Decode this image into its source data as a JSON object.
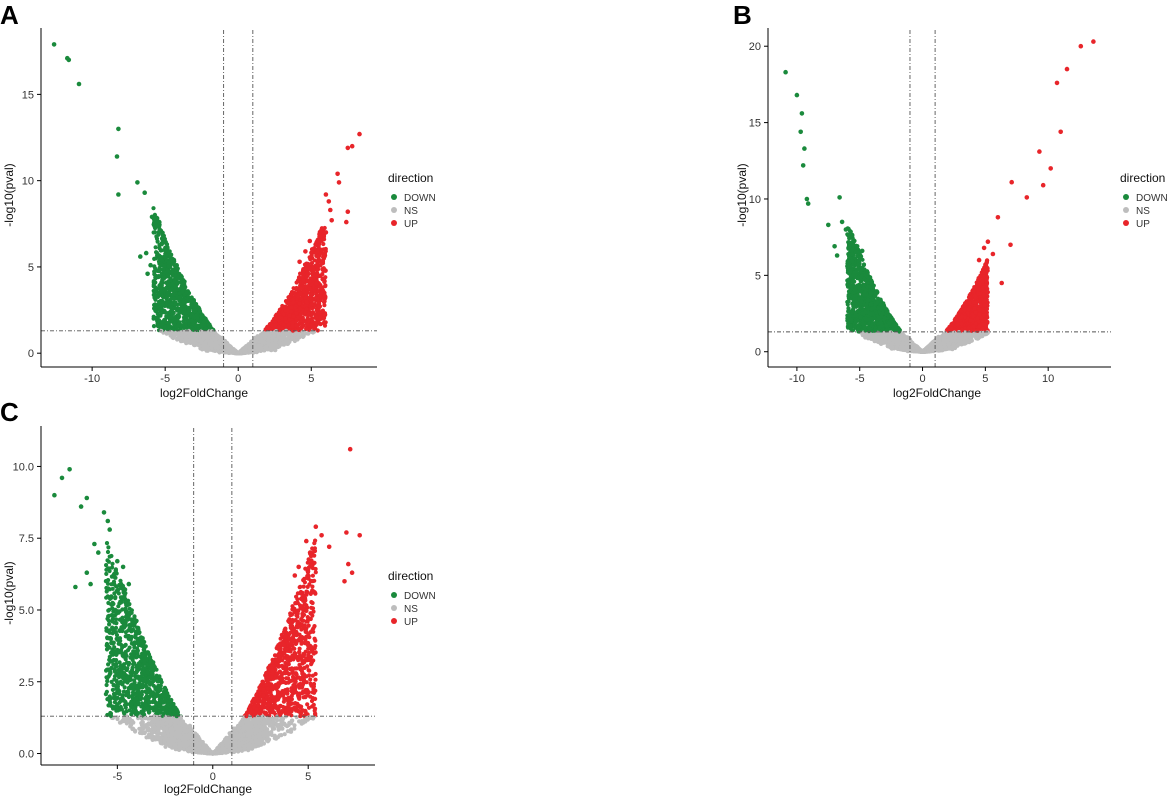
{
  "figure": {
    "legend_title": "direction",
    "legend_entries": [
      "DOWN",
      "NS",
      "UP"
    ],
    "colors": {
      "DOWN": "#1a8a3c",
      "NS": "#bdbdbd",
      "UP": "#e8252a"
    }
  },
  "chart_data": [
    {
      "panel": "A",
      "type": "scatter",
      "xlabel": "log2FoldChange",
      "ylabel": "-log10(pval)",
      "xlim": [
        -13.5,
        9.5
      ],
      "ylim": [
        -0.8,
        18.5
      ],
      "xticks": [
        -10,
        -5,
        0,
        5
      ],
      "xtick_labels": [
        "-10",
        "-5",
        "0",
        "5"
      ],
      "yticks": [
        0,
        5,
        10,
        15
      ],
      "ytick_labels": [
        "0",
        "5",
        "10",
        "15"
      ],
      "vlines": [
        -1,
        1
      ],
      "hline": 1.3,
      "cloud": {
        "left_extent": 5.8,
        "right_extent": 6.0,
        "down_max": 5.5,
        "up_max": 4.8,
        "density": 0.9
      },
      "down_points": [
        [
          -12.6,
          17.9
        ],
        [
          -11.7,
          17.1
        ],
        [
          -11.6,
          17.0
        ],
        [
          -10.9,
          15.6
        ],
        [
          -8.2,
          13.0
        ],
        [
          -8.3,
          11.4
        ],
        [
          -8.2,
          9.2
        ],
        [
          -6.9,
          9.9
        ],
        [
          -6.4,
          9.3
        ],
        [
          -5.9,
          7.9
        ],
        [
          -5.7,
          7.8
        ],
        [
          -5.4,
          7.6
        ],
        [
          -5.3,
          7.1
        ],
        [
          -5.1,
          6.8
        ],
        [
          -6.3,
          5.8
        ],
        [
          -6.0,
          5.1
        ],
        [
          -4.9,
          6.0
        ],
        [
          -4.6,
          5.7
        ],
        [
          -4.4,
          5.4
        ],
        [
          -6.7,
          5.6
        ],
        [
          -6.2,
          4.6
        ]
      ],
      "up_points": [
        [
          8.3,
          12.7
        ],
        [
          7.8,
          12.0
        ],
        [
          7.5,
          11.9
        ],
        [
          6.8,
          10.4
        ],
        [
          6.9,
          9.9
        ],
        [
          6.2,
          8.8
        ],
        [
          6.0,
          9.2
        ],
        [
          6.3,
          8.3
        ],
        [
          7.5,
          8.2
        ],
        [
          7.4,
          7.6
        ],
        [
          6.4,
          7.7
        ],
        [
          6.0,
          7.0
        ],
        [
          5.6,
          6.8
        ],
        [
          4.9,
          6.5
        ],
        [
          5.3,
          6.3
        ],
        [
          4.6,
          5.9
        ],
        [
          4.2,
          5.3
        ],
        [
          5.9,
          5.6
        ]
      ]
    },
    {
      "panel": "B",
      "type": "scatter",
      "xlabel": "log2FoldChange",
      "ylabel": "-log10(pval)",
      "xlim": [
        -12.3,
        15.0
      ],
      "ylim": [
        -1.0,
        20.8
      ],
      "xticks": [
        -10,
        -5,
        0,
        5,
        10
      ],
      "xtick_labels": [
        "-10",
        "-5",
        "0",
        "5",
        "10"
      ],
      "yticks": [
        0,
        5,
        10,
        15,
        20
      ],
      "ytick_labels": [
        "0",
        "5",
        "10",
        "15",
        "20"
      ],
      "vlines": [
        -1,
        1
      ],
      "hline": 1.3,
      "cloud": {
        "left_extent": 6.0,
        "right_extent": 5.2,
        "down_max": 5.5,
        "up_max": 3.6,
        "density": 1.0
      },
      "down_points": [
        [
          -10.9,
          18.3
        ],
        [
          -10.0,
          16.8
        ],
        [
          -9.6,
          15.6
        ],
        [
          -9.7,
          14.4
        ],
        [
          -9.4,
          13.3
        ],
        [
          -9.5,
          12.2
        ],
        [
          -9.2,
          10.0
        ],
        [
          -9.1,
          9.7
        ],
        [
          -6.6,
          10.1
        ],
        [
          -7.5,
          8.3
        ],
        [
          -6.4,
          8.5
        ],
        [
          -6.1,
          8.0
        ],
        [
          -5.7,
          7.6
        ],
        [
          -5.5,
          7.3
        ],
        [
          -7.0,
          6.9
        ],
        [
          -6.8,
          6.3
        ],
        [
          -5.2,
          6.9
        ],
        [
          -4.8,
          6.6
        ]
      ],
      "up_points": [
        [
          13.6,
          20.3
        ],
        [
          12.6,
          20.0
        ],
        [
          11.5,
          18.5
        ],
        [
          10.7,
          17.6
        ],
        [
          11.0,
          14.4
        ],
        [
          9.3,
          13.1
        ],
        [
          10.2,
          12.0
        ],
        [
          7.1,
          11.1
        ],
        [
          9.6,
          10.9
        ],
        [
          8.3,
          10.1
        ],
        [
          7.0,
          7.0
        ],
        [
          6.0,
          8.8
        ],
        [
          5.2,
          7.2
        ],
        [
          4.9,
          6.8
        ],
        [
          5.6,
          6.4
        ],
        [
          4.5,
          6.0
        ],
        [
          6.3,
          4.5
        ]
      ]
    },
    {
      "panel": "C",
      "type": "scatter",
      "xlabel": "log2FoldChange",
      "ylabel": "-log10(pval)",
      "xlim": [
        -9.0,
        8.5
      ],
      "ylim": [
        -0.4,
        11.2
      ],
      "xticks": [
        -5,
        0,
        5
      ],
      "xtick_labels": [
        "-5",
        "0",
        "5"
      ],
      "yticks": [
        0,
        2.5,
        5,
        7.5,
        10
      ],
      "ytick_labels": [
        "0.0",
        "2.5",
        "5.0",
        "7.5",
        "10.0"
      ],
      "vlines": [
        -1,
        1
      ],
      "hline": 1.3,
      "cloud": {
        "left_extent": 5.6,
        "right_extent": 5.4,
        "down_max": 5.0,
        "up_max": 5.0,
        "density": 1.0
      },
      "down_points": [
        [
          -7.5,
          9.9
        ],
        [
          -7.9,
          9.6
        ],
        [
          -8.3,
          9.0
        ],
        [
          -6.6,
          8.9
        ],
        [
          -6.9,
          8.6
        ],
        [
          -5.7,
          8.4
        ],
        [
          -5.5,
          8.1
        ],
        [
          -5.4,
          7.8
        ],
        [
          -6.2,
          7.3
        ],
        [
          -6.0,
          7.0
        ],
        [
          -5.0,
          6.7
        ],
        [
          -4.7,
          6.5
        ],
        [
          -6.6,
          6.3
        ],
        [
          -6.4,
          5.9
        ],
        [
          -7.2,
          5.8
        ],
        [
          -4.4,
          5.9
        ]
      ],
      "up_points": [
        [
          7.2,
          10.6
        ],
        [
          5.4,
          7.9
        ],
        [
          5.7,
          7.6
        ],
        [
          7.0,
          7.7
        ],
        [
          7.7,
          7.6
        ],
        [
          4.9,
          7.4
        ],
        [
          5.1,
          7.0
        ],
        [
          6.1,
          7.2
        ],
        [
          7.1,
          6.6
        ],
        [
          7.3,
          6.3
        ],
        [
          6.9,
          6.0
        ],
        [
          4.5,
          6.5
        ],
        [
          4.3,
          6.2
        ]
      ]
    }
  ]
}
